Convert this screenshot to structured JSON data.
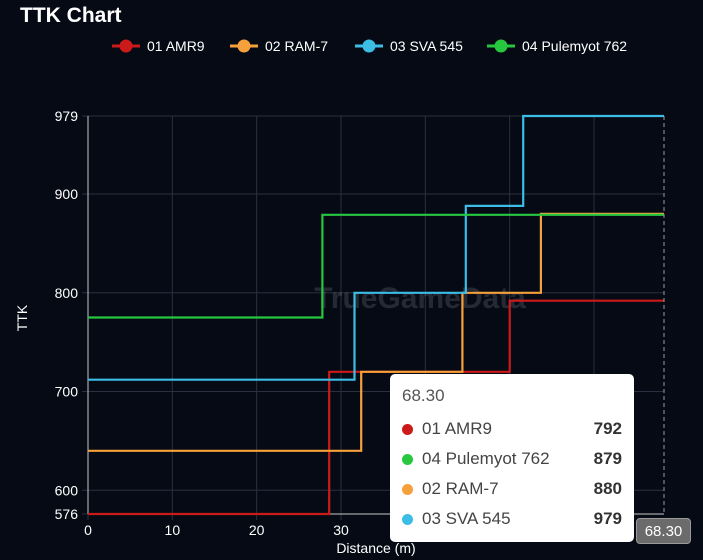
{
  "chart_data": {
    "type": "line",
    "step": true,
    "title": "TTK Chart",
    "xlabel": "Distance (m)",
    "ylabel": "TTK",
    "watermark": "TrueGameData",
    "xlim": [
      0,
      68.3
    ],
    "ylim": [
      576,
      979
    ],
    "x_ticks": [
      {
        "value": 0,
        "label": "0"
      },
      {
        "value": 10,
        "label": "10"
      },
      {
        "value": 20,
        "label": "20"
      },
      {
        "value": 30,
        "label": "30"
      }
    ],
    "y_ticks": [
      {
        "value": 576,
        "label": "576"
      },
      {
        "value": 600,
        "label": "600"
      },
      {
        "value": 700,
        "label": "700"
      },
      {
        "value": 800,
        "label": "800"
      },
      {
        "value": 900,
        "label": "900"
      },
      {
        "value": 979,
        "label": "979"
      }
    ],
    "series": [
      {
        "name": "01 AMR9",
        "color": "#cc1a1a",
        "points": [
          [
            0,
            576
          ],
          [
            28.6,
            576
          ],
          [
            28.6,
            720
          ],
          [
            50,
            720
          ],
          [
            50,
            792
          ],
          [
            68.3,
            792
          ]
        ]
      },
      {
        "name": "02 RAM-7",
        "color": "#f5a03a",
        "points": [
          [
            0,
            640
          ],
          [
            32.4,
            640
          ],
          [
            32.4,
            720
          ],
          [
            44.4,
            720
          ],
          [
            44.4,
            800
          ],
          [
            53.7,
            800
          ],
          [
            53.7,
            880
          ],
          [
            68.3,
            880
          ]
        ]
      },
      {
        "name": "03 SVA 545",
        "color": "#3cbde6",
        "points": [
          [
            0,
            712
          ],
          [
            31.6,
            712
          ],
          [
            31.6,
            800
          ],
          [
            44.8,
            800
          ],
          [
            44.8,
            888
          ],
          [
            51.6,
            888
          ],
          [
            51.6,
            979
          ],
          [
            68.3,
            979
          ]
        ]
      },
      {
        "name": "04 Pulemyot 762",
        "color": "#27c73f",
        "points": [
          [
            0,
            775
          ],
          [
            27.8,
            775
          ],
          [
            27.8,
            879
          ],
          [
            68.3,
            879
          ]
        ]
      }
    ]
  },
  "tooltip": {
    "title": "68.30",
    "rows": [
      {
        "name": "01 AMR9",
        "value": "792",
        "color": "#cc1a1a"
      },
      {
        "name": "04 Pulemyot 762",
        "value": "879",
        "color": "#27c73f"
      },
      {
        "name": "02 RAM-7",
        "value": "880",
        "color": "#f5a03a"
      },
      {
        "name": "03 SVA 545",
        "value": "979",
        "color": "#3cbde6"
      }
    ]
  },
  "crosshair_label": "68.30"
}
